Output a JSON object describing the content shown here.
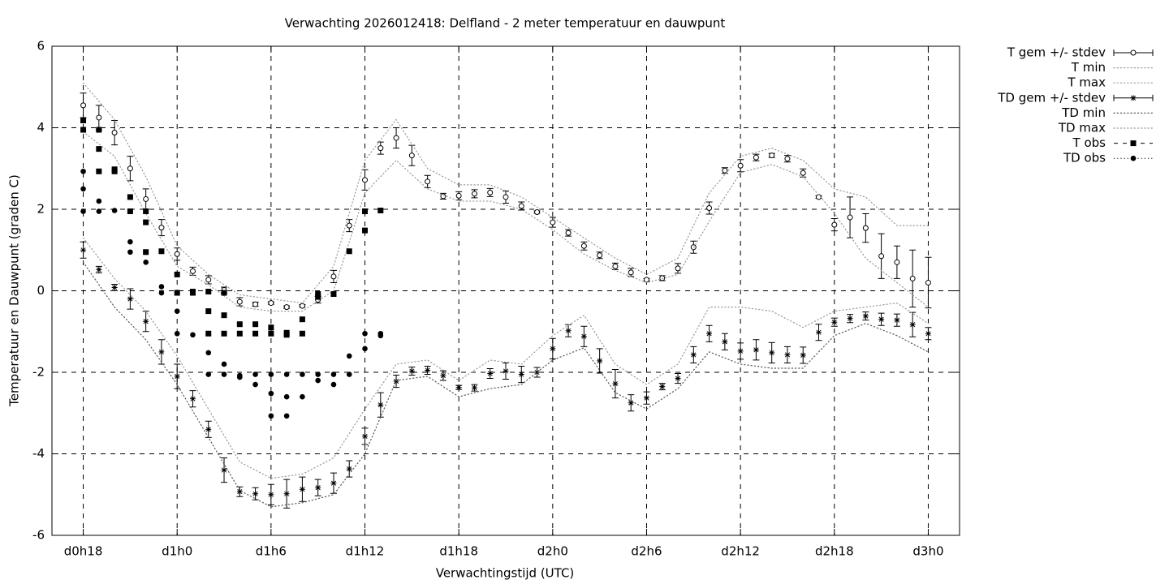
{
  "chart_data": {
    "type": "errorbar-line",
    "title": "Verwachting 2026012418: Delfland - 2 meter temperatuur en dauwpunt",
    "x_label": "Verwachtingstijd (UTC)",
    "y_label": "Temperatuur en Dauwpunt (graden C)",
    "xlim": [
      16,
      74
    ],
    "ylim": [
      -6,
      6
    ],
    "xticks": [
      {
        "value": 18,
        "label": "d0h18"
      },
      {
        "value": 24,
        "label": "d1h0"
      },
      {
        "value": 30,
        "label": "d1h6"
      },
      {
        "value": 36,
        "label": "d1h12"
      },
      {
        "value": 42,
        "label": "d1h18"
      },
      {
        "value": 48,
        "label": "d2h0"
      },
      {
        "value": 54,
        "label": "d2h6"
      },
      {
        "value": 60,
        "label": "d2h12"
      },
      {
        "value": 66,
        "label": "d2h18"
      },
      {
        "value": 72,
        "label": "d3h0"
      }
    ],
    "yticks": [
      -6,
      -4,
      -2,
      0,
      2,
      4,
      6
    ],
    "grid": true,
    "legend": "outside-top-right",
    "x": [
      18,
      19,
      20,
      21,
      22,
      23,
      24,
      25,
      26,
      27,
      28,
      29,
      30,
      31,
      32,
      33,
      34,
      35,
      36,
      37,
      38,
      39,
      40,
      41,
      42,
      43,
      44,
      45,
      46,
      47,
      48,
      49,
      50,
      51,
      52,
      53,
      54,
      55,
      56,
      57,
      58,
      59,
      60,
      61,
      62,
      63,
      64,
      65,
      66,
      67,
      68,
      69,
      70,
      71,
      72
    ],
    "series": [
      {
        "name": "T gem +/- stdev",
        "style": "errorbars",
        "marker": "open-circle",
        "color": "#000000",
        "values": [
          4.55,
          4.25,
          3.88,
          3.0,
          2.25,
          1.55,
          0.9,
          0.48,
          0.27,
          0.02,
          -0.27,
          -0.33,
          -0.3,
          -0.4,
          -0.37,
          -0.22,
          0.35,
          1.6,
          2.72,
          3.5,
          3.75,
          3.32,
          2.68,
          2.32,
          2.33,
          2.38,
          2.41,
          2.3,
          2.08,
          1.93,
          1.68,
          1.42,
          1.1,
          0.87,
          0.6,
          0.45,
          0.27,
          0.31,
          0.55,
          1.07,
          2.03,
          2.95,
          3.07,
          3.27,
          3.32,
          3.24,
          2.89,
          2.3,
          1.62,
          1.8,
          1.54,
          0.85,
          0.7,
          0.3,
          0.2
        ],
        "errors": [
          0.3,
          0.3,
          0.3,
          0.3,
          0.25,
          0.2,
          0.15,
          0.1,
          0.1,
          0.07,
          0.1,
          0.05,
          0.03,
          0.03,
          0.03,
          0.08,
          0.15,
          0.15,
          0.25,
          0.15,
          0.25,
          0.25,
          0.15,
          0.07,
          0.1,
          0.1,
          0.1,
          0.15,
          0.1,
          0.03,
          0.12,
          0.08,
          0.1,
          0.08,
          0.08,
          0.1,
          0.03,
          0.06,
          0.12,
          0.15,
          0.15,
          0.07,
          0.15,
          0.08,
          0.05,
          0.08,
          0.1,
          0.03,
          0.15,
          0.5,
          0.35,
          0.55,
          0.4,
          0.7,
          0.62
        ]
      },
      {
        "name": "T min",
        "style": "dotted",
        "color": "#999999",
        "x": [
          18,
          20,
          22,
          24,
          26,
          28,
          30,
          32,
          34,
          36,
          38,
          40,
          42,
          44,
          46,
          48,
          50,
          52,
          54,
          56,
          58,
          60,
          62,
          64,
          66,
          68,
          70,
          72
        ],
        "values": [
          3.9,
          3.3,
          1.9,
          0.6,
          0.15,
          -0.4,
          -0.5,
          -0.5,
          0.0,
          2.4,
          3.2,
          2.5,
          2.2,
          2.2,
          2.0,
          1.5,
          0.9,
          0.5,
          0.2,
          0.4,
          1.7,
          2.9,
          3.1,
          2.8,
          1.9,
          0.8,
          0.2,
          -0.4
        ]
      },
      {
        "name": "T max",
        "style": "dotted",
        "color": "#999999",
        "x": [
          18,
          20,
          22,
          24,
          26,
          28,
          30,
          32,
          34,
          36,
          38,
          40,
          42,
          44,
          46,
          48,
          50,
          52,
          54,
          56,
          58,
          60,
          62,
          64,
          66,
          68,
          70,
          72
        ],
        "values": [
          5.1,
          4.2,
          2.8,
          1.1,
          0.4,
          -0.1,
          -0.2,
          -0.3,
          0.6,
          3.2,
          4.2,
          3.0,
          2.6,
          2.6,
          2.3,
          1.8,
          1.3,
          0.8,
          0.4,
          0.8,
          2.4,
          3.3,
          3.5,
          3.2,
          2.5,
          2.3,
          1.6,
          1.6
        ]
      },
      {
        "name": "TD gem +/- stdev",
        "style": "errorbars",
        "marker": "asterisk",
        "color": "#000000",
        "values": [
          1.0,
          0.52,
          0.08,
          -0.2,
          -0.75,
          -1.5,
          -2.1,
          -2.65,
          -3.4,
          -4.4,
          -4.93,
          -4.98,
          -5.0,
          -4.98,
          -4.87,
          -4.83,
          -4.72,
          -4.37,
          -3.57,
          -2.8,
          -2.22,
          -1.97,
          -1.95,
          -2.08,
          -2.37,
          -2.38,
          -2.03,
          -1.97,
          -2.05,
          -2.0,
          -1.42,
          -0.98,
          -1.12,
          -1.72,
          -2.28,
          -2.75,
          -2.63,
          -2.35,
          -2.15,
          -1.57,
          -1.05,
          -1.25,
          -1.48,
          -1.45,
          -1.52,
          -1.57,
          -1.58,
          -1.02,
          -0.77,
          -0.68,
          -0.62,
          -0.7,
          -0.72,
          -0.83,
          -1.05
        ],
        "errors": [
          0.2,
          0.08,
          0.08,
          0.25,
          0.25,
          0.3,
          0.3,
          0.2,
          0.2,
          0.3,
          0.12,
          0.15,
          0.25,
          0.35,
          0.3,
          0.2,
          0.25,
          0.2,
          0.2,
          0.3,
          0.15,
          0.1,
          0.1,
          0.12,
          0.05,
          0.08,
          0.12,
          0.2,
          0.2,
          0.12,
          0.25,
          0.15,
          0.25,
          0.3,
          0.35,
          0.2,
          0.15,
          0.08,
          0.12,
          0.2,
          0.2,
          0.2,
          0.2,
          0.25,
          0.25,
          0.2,
          0.2,
          0.2,
          0.1,
          0.1,
          0.1,
          0.15,
          0.15,
          0.3,
          0.15
        ]
      },
      {
        "name": "TD min",
        "style": "dotted",
        "color": "#555555",
        "x": [
          18,
          20,
          22,
          24,
          26,
          28,
          30,
          32,
          34,
          36,
          38,
          40,
          42,
          44,
          46,
          48,
          50,
          52,
          54,
          56,
          58,
          60,
          62,
          64,
          66,
          68,
          70,
          72
        ],
        "values": [
          0.7,
          -0.4,
          -1.2,
          -2.3,
          -3.6,
          -4.9,
          -5.3,
          -5.2,
          -5.0,
          -4.0,
          -2.2,
          -2.1,
          -2.6,
          -2.4,
          -2.3,
          -1.7,
          -1.4,
          -2.5,
          -2.9,
          -2.4,
          -1.5,
          -1.8,
          -1.9,
          -1.9,
          -1.1,
          -0.8,
          -1.1,
          -1.5
        ]
      },
      {
        "name": "TD max",
        "style": "dotted",
        "color": "#999999",
        "x": [
          18,
          20,
          22,
          24,
          26,
          28,
          30,
          32,
          34,
          36,
          38,
          40,
          42,
          44,
          46,
          48,
          50,
          52,
          54,
          56,
          58,
          60,
          62,
          64,
          66,
          68,
          70,
          72
        ],
        "values": [
          1.3,
          0.3,
          -0.5,
          -1.6,
          -2.9,
          -4.2,
          -4.6,
          -4.5,
          -4.1,
          -2.9,
          -1.8,
          -1.7,
          -2.2,
          -1.7,
          -1.8,
          -1.1,
          -0.6,
          -1.8,
          -2.3,
          -1.8,
          -0.4,
          -0.4,
          -0.5,
          -0.9,
          -0.5,
          -0.4,
          -0.3,
          -0.8
        ]
      },
      {
        "name": "T obs",
        "style": "points",
        "marker": "square",
        "color": "#000000",
        "x": [
          18,
          18,
          19,
          19,
          19,
          20,
          20,
          21,
          21,
          22,
          22,
          22,
          23,
          24,
          24,
          25,
          25,
          26,
          26,
          26,
          27,
          27,
          27,
          28,
          28,
          29,
          29,
          30,
          30,
          31,
          31,
          32,
          32,
          33,
          33,
          34,
          35,
          36,
          36,
          37
        ],
        "values": [
          4.18,
          3.95,
          3.95,
          3.48,
          2.93,
          2.98,
          2.93,
          2.3,
          1.95,
          1.95,
          1.68,
          0.95,
          0.97,
          0.4,
          -0.05,
          -0.02,
          -0.05,
          -0.02,
          -0.5,
          -1.05,
          -0.05,
          -0.6,
          -1.05,
          -0.82,
          -1.05,
          -0.82,
          -1.05,
          -0.9,
          -1.05,
          -1.03,
          -1.08,
          -0.7,
          -1.05,
          -0.08,
          -0.15,
          -0.08,
          0.97,
          1.95,
          1.48,
          1.97
        ]
      },
      {
        "name": "TD obs",
        "style": "points",
        "marker": "dot",
        "color": "#000000",
        "x": [
          18,
          18,
          18,
          19,
          19,
          20,
          21,
          21,
          22,
          22,
          23,
          23,
          24,
          24,
          25,
          26,
          26,
          27,
          27,
          28,
          28,
          29,
          29,
          30,
          30,
          30,
          31,
          31,
          31,
          32,
          32,
          33,
          33,
          34,
          34,
          35,
          35,
          36,
          36,
          37,
          37
        ],
        "values": [
          2.93,
          2.5,
          1.95,
          2.2,
          1.95,
          1.97,
          1.2,
          0.95,
          0.95,
          0.7,
          0.1,
          -0.05,
          -0.5,
          -1.05,
          -1.08,
          -1.52,
          -2.05,
          -1.8,
          -2.05,
          -2.08,
          -2.12,
          -2.05,
          -2.3,
          -2.05,
          -2.52,
          -3.07,
          -2.05,
          -2.6,
          -3.07,
          -2.05,
          -2.6,
          -2.05,
          -2.2,
          -2.05,
          -2.3,
          -1.6,
          -2.05,
          -1.05,
          -1.42,
          -1.05,
          -1.1
        ]
      }
    ]
  }
}
